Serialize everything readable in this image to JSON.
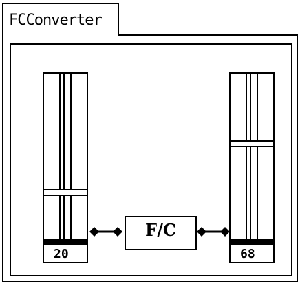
{
  "window": {
    "title": "FCConverter"
  },
  "left_slider": {
    "value": "20",
    "level": 0.27
  },
  "right_slider": {
    "value": "68",
    "level": 0.58
  },
  "converter": {
    "label": "F/C"
  },
  "icons": {
    "connector_left": "diamond-connector-icon",
    "connector_right": "diamond-connector-icon"
  }
}
